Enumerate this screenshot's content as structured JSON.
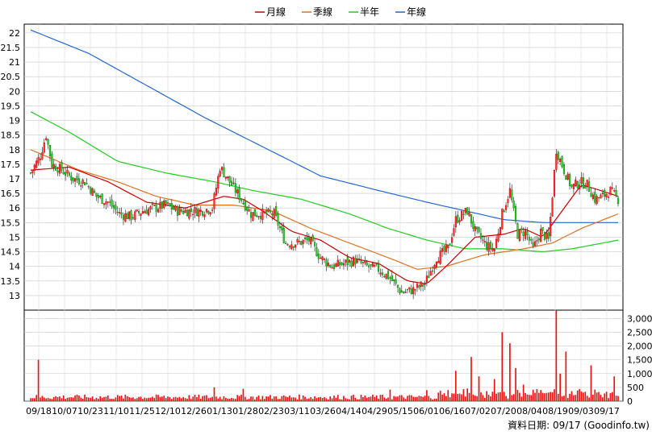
{
  "chart_data": {
    "type": "candlestick",
    "legend": [
      {
        "name": "月線",
        "color": "#cc0000"
      },
      {
        "name": "季線",
        "color": "#e07020"
      },
      {
        "name": "半年",
        "color": "#22cc22"
      },
      {
        "name": "年線",
        "color": "#2266cc"
      }
    ],
    "legend_position": "top-center",
    "source_note": "資料日期: 09/17 (Goodinfo.tw)",
    "grid": true,
    "price_axis": {
      "ticks": [
        13,
        13.5,
        14,
        14.5,
        15,
        15.5,
        16,
        16.5,
        17,
        17.5,
        18,
        18.5,
        19,
        19.5,
        20,
        20.5,
        21,
        21.5,
        22
      ],
      "tick_labels": [
        "13",
        "13.5",
        "14",
        "14.5",
        "15",
        "15.5",
        "16",
        "16.5",
        "17",
        "17.5",
        "18",
        "18.5",
        "19",
        "19.5",
        "20",
        "20.5",
        "21",
        "21.5",
        "22"
      ],
      "range": [
        12.5,
        22.3
      ]
    },
    "volume_axis": {
      "ticks": [
        0,
        500,
        1000,
        1500,
        2000,
        2500,
        3000
      ],
      "tick_labels": [
        "0",
        "500",
        "1,000",
        "1,500",
        "2,000",
        "2,500",
        "3,000"
      ],
      "range": [
        0,
        3300
      ]
    },
    "x_labels": [
      "09/18",
      "10/07",
      "10/23",
      "11/10",
      "11/25",
      "12/10",
      "12/26",
      "01/13",
      "01/28",
      "02/23",
      "03/11",
      "03/26",
      "04/14",
      "04/29",
      "05/15",
      "06/01",
      "06/16",
      "07/02",
      "07/20",
      "08/04",
      "08/19",
      "09/03",
      "09/17"
    ],
    "close_anchors": [
      [
        0,
        17.2
      ],
      [
        5,
        17.8
      ],
      [
        8,
        18.5
      ],
      [
        11,
        17.5
      ],
      [
        16,
        17.3
      ],
      [
        22,
        17.0
      ],
      [
        28,
        16.9
      ],
      [
        34,
        16.4
      ],
      [
        40,
        16.2
      ],
      [
        46,
        15.8
      ],
      [
        52,
        15.7
      ],
      [
        58,
        15.9
      ],
      [
        64,
        16.0
      ],
      [
        70,
        16.1
      ],
      [
        76,
        15.9
      ],
      [
        82,
        15.9
      ],
      [
        88,
        15.9
      ],
      [
        94,
        16.0
      ],
      [
        98,
        17.4
      ],
      [
        103,
        16.9
      ],
      [
        108,
        16.4
      ],
      [
        114,
        15.8
      ],
      [
        120,
        15.8
      ],
      [
        126,
        15.8
      ],
      [
        132,
        14.8
      ],
      [
        138,
        14.8
      ],
      [
        144,
        14.9
      ],
      [
        150,
        14.3
      ],
      [
        156,
        14.0
      ],
      [
        162,
        14.1
      ],
      [
        168,
        14.2
      ],
      [
        174,
        14.0
      ],
      [
        180,
        13.9
      ],
      [
        186,
        13.6
      ],
      [
        192,
        13.1
      ],
      [
        198,
        13.2
      ],
      [
        204,
        13.4
      ],
      [
        210,
        14.3
      ],
      [
        216,
        14.6
      ],
      [
        220,
        15.6
      ],
      [
        226,
        15.9
      ],
      [
        230,
        15.2
      ],
      [
        236,
        14.7
      ],
      [
        240,
        14.6
      ],
      [
        244,
        15.8
      ],
      [
        248,
        16.6
      ],
      [
        252,
        15.1
      ],
      [
        256,
        15.2
      ],
      [
        260,
        14.6
      ],
      [
        264,
        15.2
      ],
      [
        268,
        14.9
      ],
      [
        272,
        18.0
      ],
      [
        276,
        17.3
      ],
      [
        280,
        16.7
      ],
      [
        284,
        16.9
      ],
      [
        288,
        16.8
      ],
      [
        292,
        16.3
      ],
      [
        296,
        16.4
      ],
      [
        300,
        16.6
      ],
      [
        304,
        16.3
      ]
    ],
    "ma_month": [
      [
        0,
        17.3
      ],
      [
        20,
        17.4
      ],
      [
        40,
        16.9
      ],
      [
        60,
        16.2
      ],
      [
        80,
        16.0
      ],
      [
        100,
        16.4
      ],
      [
        110,
        16.3
      ],
      [
        120,
        15.9
      ],
      [
        135,
        15.2
      ],
      [
        150,
        14.9
      ],
      [
        165,
        14.3
      ],
      [
        180,
        14.1
      ],
      [
        195,
        13.5
      ],
      [
        205,
        13.4
      ],
      [
        215,
        14.0
      ],
      [
        230,
        15.0
      ],
      [
        245,
        15.1
      ],
      [
        255,
        15.3
      ],
      [
        265,
        15.0
      ],
      [
        275,
        15.9
      ],
      [
        285,
        16.8
      ],
      [
        295,
        16.6
      ],
      [
        304,
        16.4
      ]
    ],
    "ma_quarter": [
      [
        0,
        18.0
      ],
      [
        25,
        17.3
      ],
      [
        45,
        16.9
      ],
      [
        65,
        16.4
      ],
      [
        85,
        16.1
      ],
      [
        105,
        16.1
      ],
      [
        125,
        15.9
      ],
      [
        145,
        15.3
      ],
      [
        165,
        14.8
      ],
      [
        185,
        14.3
      ],
      [
        200,
        13.9
      ],
      [
        215,
        14.0
      ],
      [
        235,
        14.4
      ],
      [
        255,
        14.6
      ],
      [
        270,
        14.8
      ],
      [
        285,
        15.3
      ],
      [
        304,
        15.8
      ]
    ],
    "ma_half": [
      [
        0,
        19.3
      ],
      [
        20,
        18.6
      ],
      [
        45,
        17.6
      ],
      [
        70,
        17.2
      ],
      [
        95,
        16.9
      ],
      [
        115,
        16.6
      ],
      [
        140,
        16.3
      ],
      [
        165,
        15.8
      ],
      [
        185,
        15.3
      ],
      [
        205,
        14.9
      ],
      [
        225,
        14.6
      ],
      [
        245,
        14.6
      ],
      [
        265,
        14.5
      ],
      [
        280,
        14.6
      ],
      [
        304,
        14.9
      ]
    ],
    "ma_year": [
      [
        0,
        22.1
      ],
      [
        30,
        21.3
      ],
      [
        60,
        20.2
      ],
      [
        90,
        19.1
      ],
      [
        120,
        18.1
      ],
      [
        150,
        17.1
      ],
      [
        180,
        16.6
      ],
      [
        205,
        16.2
      ],
      [
        225,
        15.9
      ],
      [
        245,
        15.6
      ],
      [
        265,
        15.5
      ],
      [
        285,
        15.5
      ],
      [
        304,
        15.5
      ]
    ],
    "volume_spikes": [
      [
        4,
        1500
      ],
      [
        95,
        500
      ],
      [
        110,
        450
      ],
      [
        186,
        420
      ],
      [
        205,
        400
      ],
      [
        220,
        1100
      ],
      [
        228,
        1600
      ],
      [
        232,
        900
      ],
      [
        240,
        800
      ],
      [
        244,
        2500
      ],
      [
        248,
        2100
      ],
      [
        251,
        1200
      ],
      [
        255,
        600
      ],
      [
        272,
        3300
      ],
      [
        274,
        1000
      ],
      [
        277,
        1800
      ],
      [
        290,
        1300
      ],
      [
        302,
        900
      ]
    ],
    "n_bars": 305
  }
}
